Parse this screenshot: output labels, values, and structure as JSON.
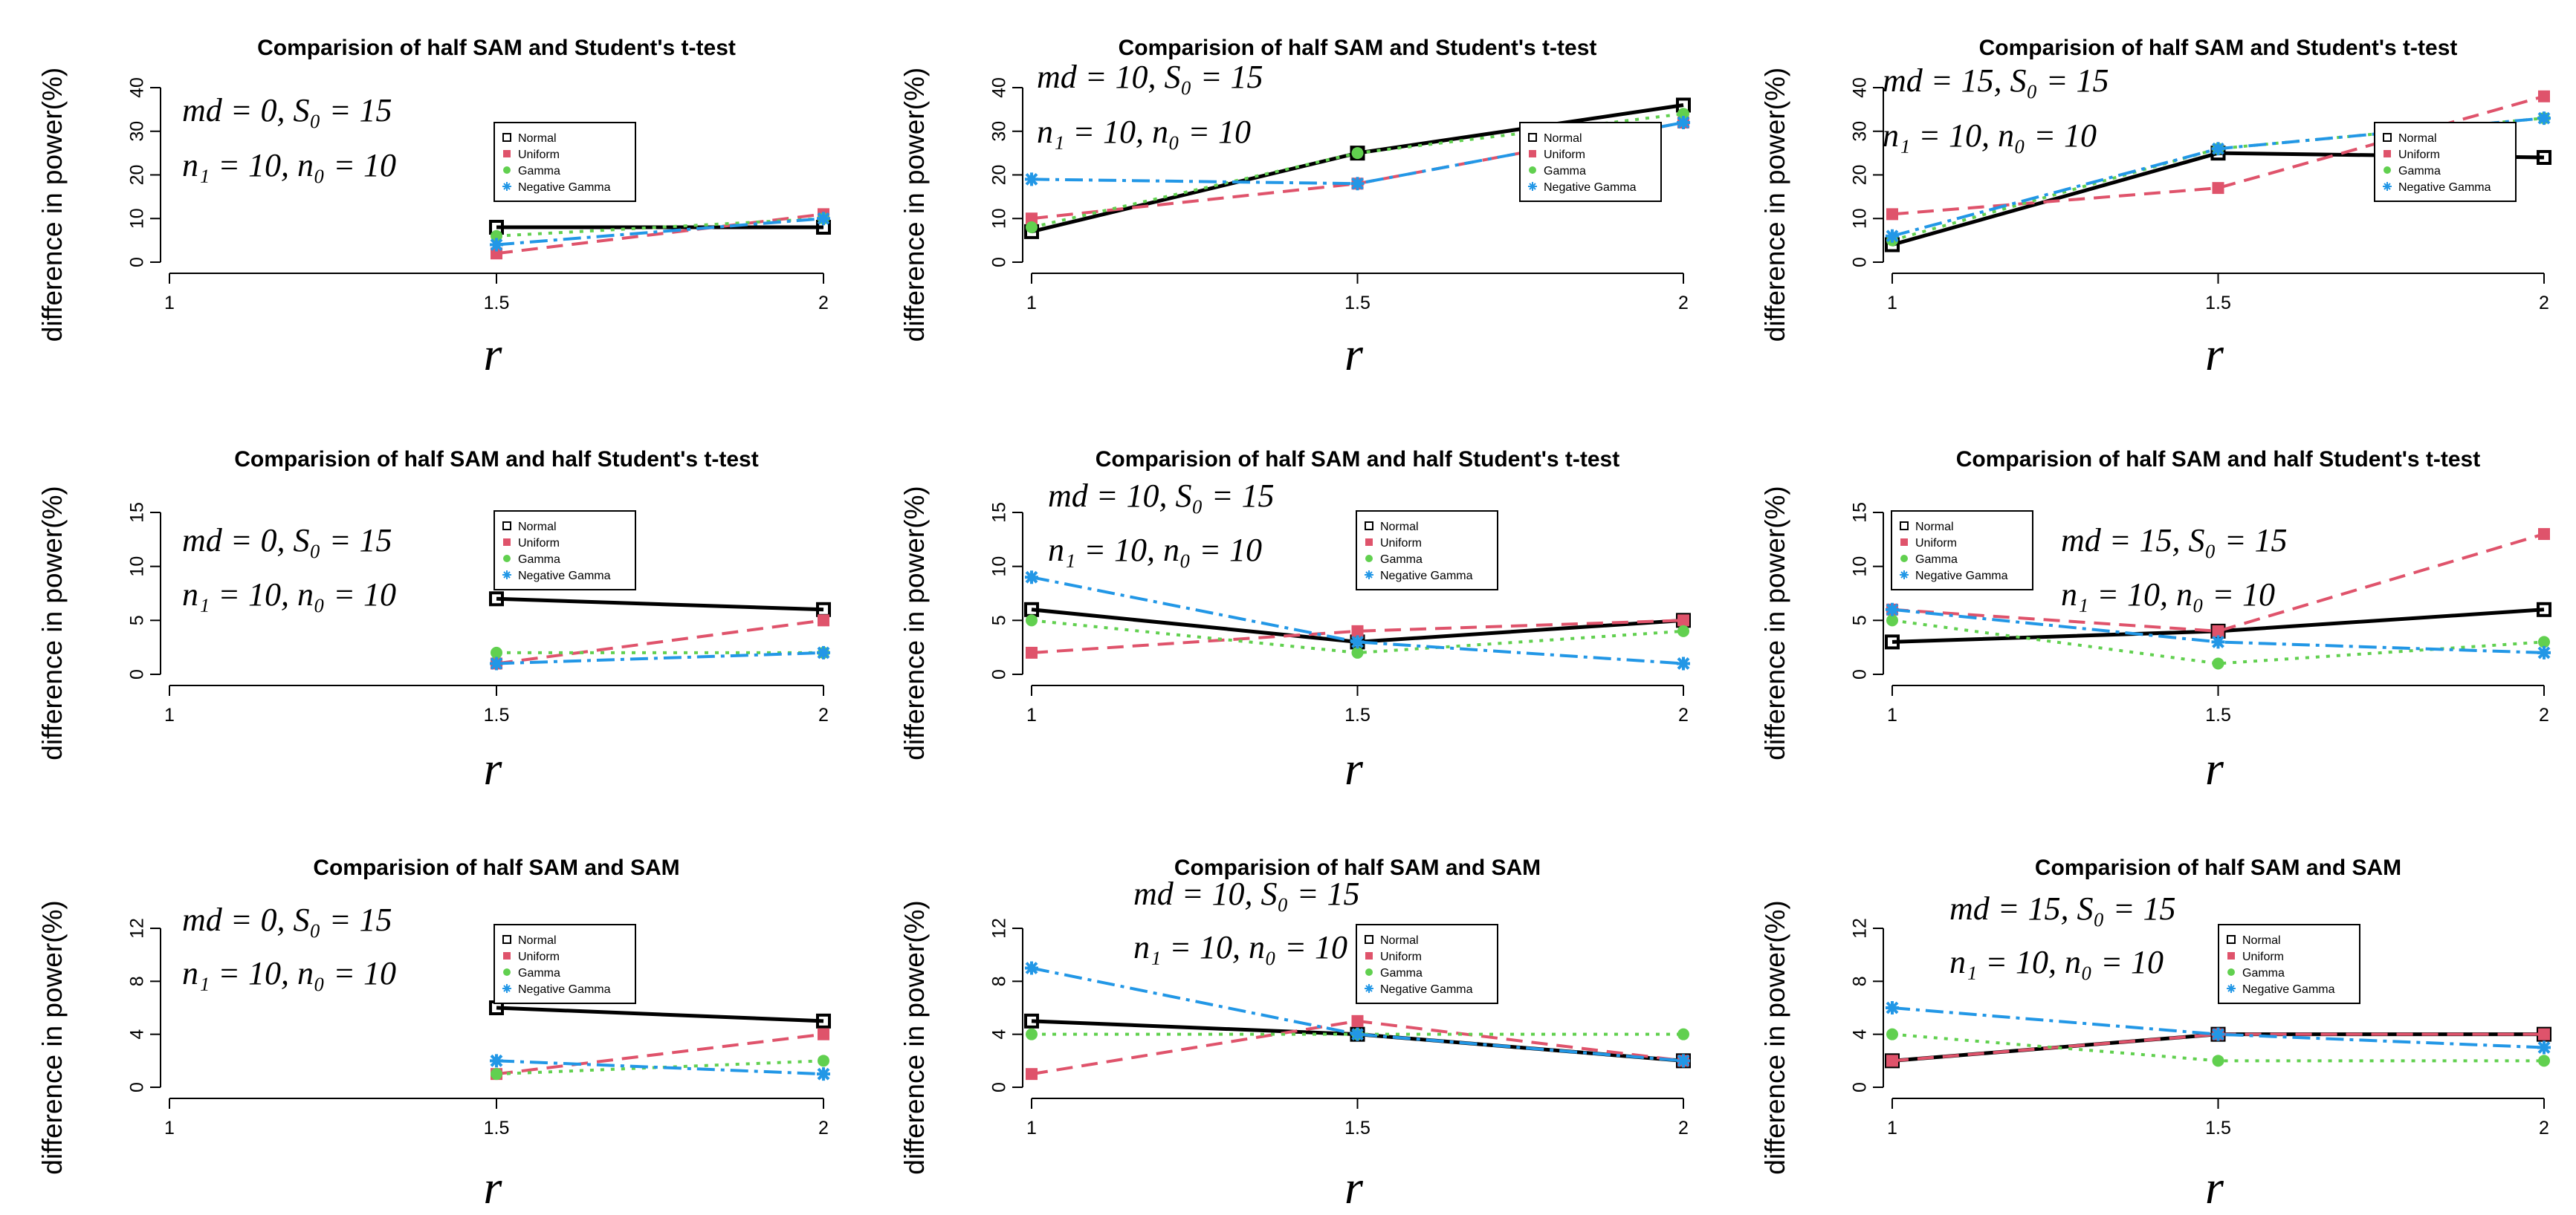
{
  "legend_labels": [
    "Normal",
    "Uniform",
    "Gamma",
    "Negative Gamma"
  ],
  "series_colors": {
    "Normal": "#000000",
    "Uniform": "#DF536B",
    "Gamma": "#61D04F",
    "Negative Gamma": "#2297E6"
  },
  "chart_data": [
    {
      "type": "line",
      "title": "Comparision of half SAM and Student's t-test",
      "ylabel": "difference in power(%)",
      "xlabel": "r",
      "annotation": [
        "md = 0, S₀ = 15",
        "n₁ = 10, n₀ = 10"
      ],
      "x_ticks": [
        "1",
        "1.5",
        "2"
      ],
      "y_ticks": [
        "0",
        "10",
        "20",
        "30",
        "40"
      ],
      "ylim": [
        0,
        40
      ],
      "x": [
        1.5,
        2
      ],
      "series": [
        {
          "name": "Normal",
          "values": [
            8,
            8
          ]
        },
        {
          "name": "Uniform",
          "values": [
            2,
            11
          ]
        },
        {
          "name": "Gamma",
          "values": [
            6,
            10
          ]
        },
        {
          "name": "Negative Gamma",
          "values": [
            4,
            10
          ]
        }
      ]
    },
    {
      "type": "line",
      "title": "Comparision of half SAM and Student's t-test",
      "ylabel": "difference in power(%)",
      "xlabel": "r",
      "annotation": [
        "md = 10, S₀ = 15",
        "n₁ = 10, n₀ = 10"
      ],
      "x_ticks": [
        "1",
        "1.5",
        "2"
      ],
      "y_ticks": [
        "0",
        "10",
        "20",
        "30",
        "40"
      ],
      "ylim": [
        0,
        40
      ],
      "x": [
        1,
        1.5,
        2
      ],
      "series": [
        {
          "name": "Normal",
          "values": [
            7,
            25,
            36
          ]
        },
        {
          "name": "Uniform",
          "values": [
            10,
            18,
            32
          ]
        },
        {
          "name": "Gamma",
          "values": [
            8,
            25,
            34
          ]
        },
        {
          "name": "Negative Gamma",
          "values": [
            19,
            18,
            32
          ]
        }
      ]
    },
    {
      "type": "line",
      "title": "Comparision of half SAM and Student's t-test",
      "ylabel": "difference in power(%)",
      "xlabel": "r",
      "annotation": [
        "md = 15, S₀ = 15",
        "n₁ = 10, n₀ = 10"
      ],
      "x_ticks": [
        "1",
        "1.5",
        "2"
      ],
      "y_ticks": [
        "0",
        "10",
        "20",
        "30",
        "40"
      ],
      "ylim": [
        0,
        40
      ],
      "x": [
        1,
        1.5,
        2
      ],
      "series": [
        {
          "name": "Normal",
          "values": [
            4,
            25,
            24
          ]
        },
        {
          "name": "Uniform",
          "values": [
            11,
            17,
            38
          ]
        },
        {
          "name": "Gamma",
          "values": [
            5,
            26,
            33
          ]
        },
        {
          "name": "Negative Gamma",
          "values": [
            6,
            26,
            33
          ]
        }
      ]
    },
    {
      "type": "line",
      "title": "Comparision of half SAM and half Student's t-test",
      "ylabel": "difference in power(%)",
      "xlabel": "r",
      "annotation": [
        "md = 0, S₀ = 15",
        "n₁ = 10, n₀ = 10"
      ],
      "x_ticks": [
        "1",
        "1.5",
        "2"
      ],
      "y_ticks": [
        "0",
        "5",
        "10",
        "15"
      ],
      "ylim": [
        0,
        15
      ],
      "x": [
        1.5,
        2
      ],
      "series": [
        {
          "name": "Normal",
          "values": [
            7,
            6
          ]
        },
        {
          "name": "Uniform",
          "values": [
            1,
            5
          ]
        },
        {
          "name": "Gamma",
          "values": [
            2,
            2
          ]
        },
        {
          "name": "Negative Gamma",
          "values": [
            1,
            2
          ]
        }
      ]
    },
    {
      "type": "line",
      "title": "Comparision of half SAM and half Student's t-test",
      "ylabel": "difference in power(%)",
      "xlabel": "r",
      "annotation": [
        "md = 10, S₀ = 15",
        "n₁ = 10, n₀ = 10"
      ],
      "x_ticks": [
        "1",
        "1.5",
        "2"
      ],
      "y_ticks": [
        "0",
        "5",
        "10",
        "15"
      ],
      "ylim": [
        0,
        15
      ],
      "x": [
        1,
        1.5,
        2
      ],
      "series": [
        {
          "name": "Normal",
          "values": [
            6,
            3,
            5
          ]
        },
        {
          "name": "Uniform",
          "values": [
            2,
            4,
            5
          ]
        },
        {
          "name": "Gamma",
          "values": [
            5,
            2,
            4
          ]
        },
        {
          "name": "Negative Gamma",
          "values": [
            9,
            3,
            1
          ]
        }
      ]
    },
    {
      "type": "line",
      "title": "Comparision of half SAM and half Student's t-test",
      "ylabel": "difference in power(%)",
      "xlabel": "r",
      "annotation": [
        "md = 15, S₀ = 15",
        "n₁ = 10, n₀ = 10"
      ],
      "x_ticks": [
        "1",
        "1.5",
        "2"
      ],
      "y_ticks": [
        "0",
        "5",
        "10",
        "15"
      ],
      "ylim": [
        0,
        15
      ],
      "x": [
        1,
        1.5,
        2
      ],
      "series": [
        {
          "name": "Normal",
          "values": [
            3,
            4,
            6
          ]
        },
        {
          "name": "Uniform",
          "values": [
            6,
            4,
            13
          ]
        },
        {
          "name": "Gamma",
          "values": [
            5,
            1,
            3
          ]
        },
        {
          "name": "Negative Gamma",
          "values": [
            6,
            3,
            2
          ]
        }
      ]
    },
    {
      "type": "line",
      "title": "Comparision of half SAM and SAM",
      "ylabel": "difference in power(%)",
      "xlabel": "r",
      "annotation": [
        "md = 0, S₀ = 15",
        "n₁ = 10, n₀ = 10"
      ],
      "x_ticks": [
        "1",
        "1.5",
        "2"
      ],
      "y_ticks": [
        "0",
        "4",
        "8",
        "12"
      ],
      "ylim": [
        0,
        12
      ],
      "x": [
        1.5,
        2
      ],
      "series": [
        {
          "name": "Normal",
          "values": [
            6,
            5
          ]
        },
        {
          "name": "Uniform",
          "values": [
            1,
            4
          ]
        },
        {
          "name": "Gamma",
          "values": [
            1,
            2
          ]
        },
        {
          "name": "Negative Gamma",
          "values": [
            2,
            1
          ]
        }
      ]
    },
    {
      "type": "line",
      "title": "Comparision of half SAM and SAM",
      "ylabel": "difference in power(%)",
      "xlabel": "r",
      "annotation": [
        "md = 10, S₀ = 15",
        "n₁ = 10, n₀ = 10"
      ],
      "x_ticks": [
        "1",
        "1.5",
        "2"
      ],
      "y_ticks": [
        "0",
        "4",
        "8",
        "12"
      ],
      "ylim": [
        0,
        12
      ],
      "x": [
        1,
        1.5,
        2
      ],
      "series": [
        {
          "name": "Normal",
          "values": [
            5,
            4,
            2
          ]
        },
        {
          "name": "Uniform",
          "values": [
            1,
            5,
            2
          ]
        },
        {
          "name": "Gamma",
          "values": [
            4,
            4,
            4
          ]
        },
        {
          "name": "Negative Gamma",
          "values": [
            9,
            4,
            2
          ]
        }
      ]
    },
    {
      "type": "line",
      "title": "Comparision of half SAM and SAM",
      "ylabel": "difference in power(%)",
      "xlabel": "r",
      "annotation": [
        "md = 15, S₀ = 15",
        "n₁ = 10, n₀ = 10"
      ],
      "x_ticks": [
        "1",
        "1.5",
        "2"
      ],
      "y_ticks": [
        "0",
        "4",
        "8",
        "12"
      ],
      "ylim": [
        0,
        12
      ],
      "x": [
        1,
        1.5,
        2
      ],
      "series": [
        {
          "name": "Normal",
          "values": [
            2,
            4,
            4
          ]
        },
        {
          "name": "Uniform",
          "values": [
            2,
            4,
            4
          ]
        },
        {
          "name": "Gamma",
          "values": [
            4,
            2,
            2
          ]
        },
        {
          "name": "Negative Gamma",
          "values": [
            6,
            4,
            3
          ]
        }
      ]
    }
  ]
}
